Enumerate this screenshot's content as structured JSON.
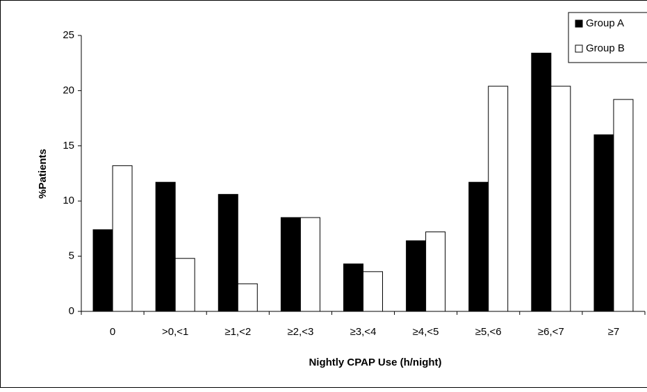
{
  "chart_data": {
    "type": "bar",
    "x_label": "Nightly CPAP Use (h/night)",
    "y_label": "%Patients",
    "categories": [
      "0",
      ">0,<1",
      "≥1,<2",
      "≥2,<3",
      "≥3,<4",
      "≥4,<5",
      "≥5,<6",
      "≥6,<7",
      "≥7"
    ],
    "series": [
      {
        "name": "Group A",
        "color": "#000000",
        "values": [
          7.4,
          11.7,
          10.6,
          8.5,
          4.3,
          6.4,
          11.7,
          23.4,
          16.0
        ]
      },
      {
        "name": "Group B",
        "color": "#ffffff",
        "values": [
          13.2,
          4.8,
          2.5,
          8.5,
          3.6,
          7.2,
          20.4,
          20.4,
          19.2
        ]
      }
    ],
    "ylim": [
      0,
      25
    ],
    "yticks": [
      0,
      5,
      10,
      15,
      20,
      25
    ],
    "grid": false,
    "legend": "top-right"
  }
}
